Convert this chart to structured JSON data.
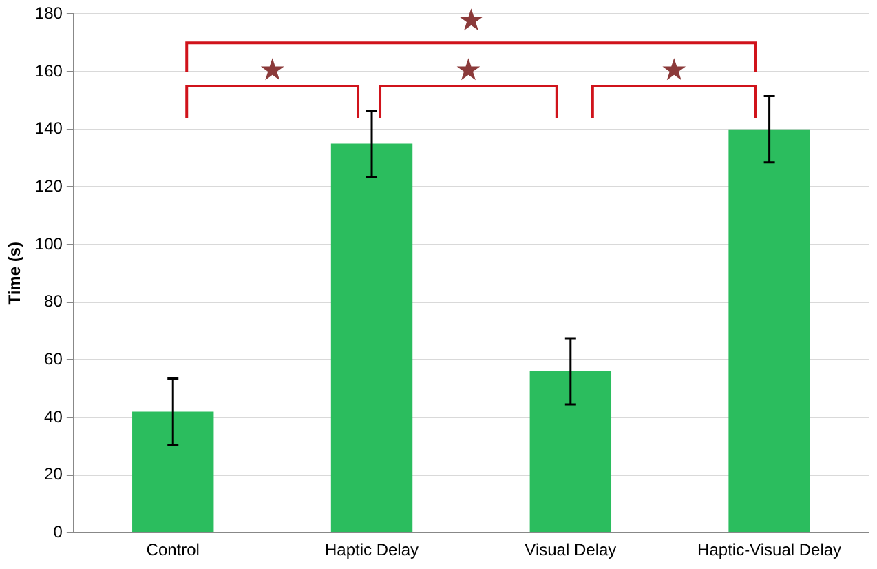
{
  "chart_data": {
    "type": "bar",
    "ylabel": "Time (s)",
    "categories": [
      "Control",
      "Haptic Delay",
      "Visual Delay",
      "Haptic-Visual Delay"
    ],
    "values": [
      42,
      135,
      56,
      140
    ],
    "errors": [
      11.5,
      11.5,
      11.5,
      11.5
    ],
    "color": "#2bbd5e",
    "ylim": [
      0,
      180
    ],
    "yticks": [
      0,
      20,
      40,
      60,
      80,
      100,
      120,
      140,
      160,
      180
    ],
    "grid": "y",
    "legend": false,
    "annotations": [
      "★",
      "★",
      "★",
      "★"
    ]
  }
}
